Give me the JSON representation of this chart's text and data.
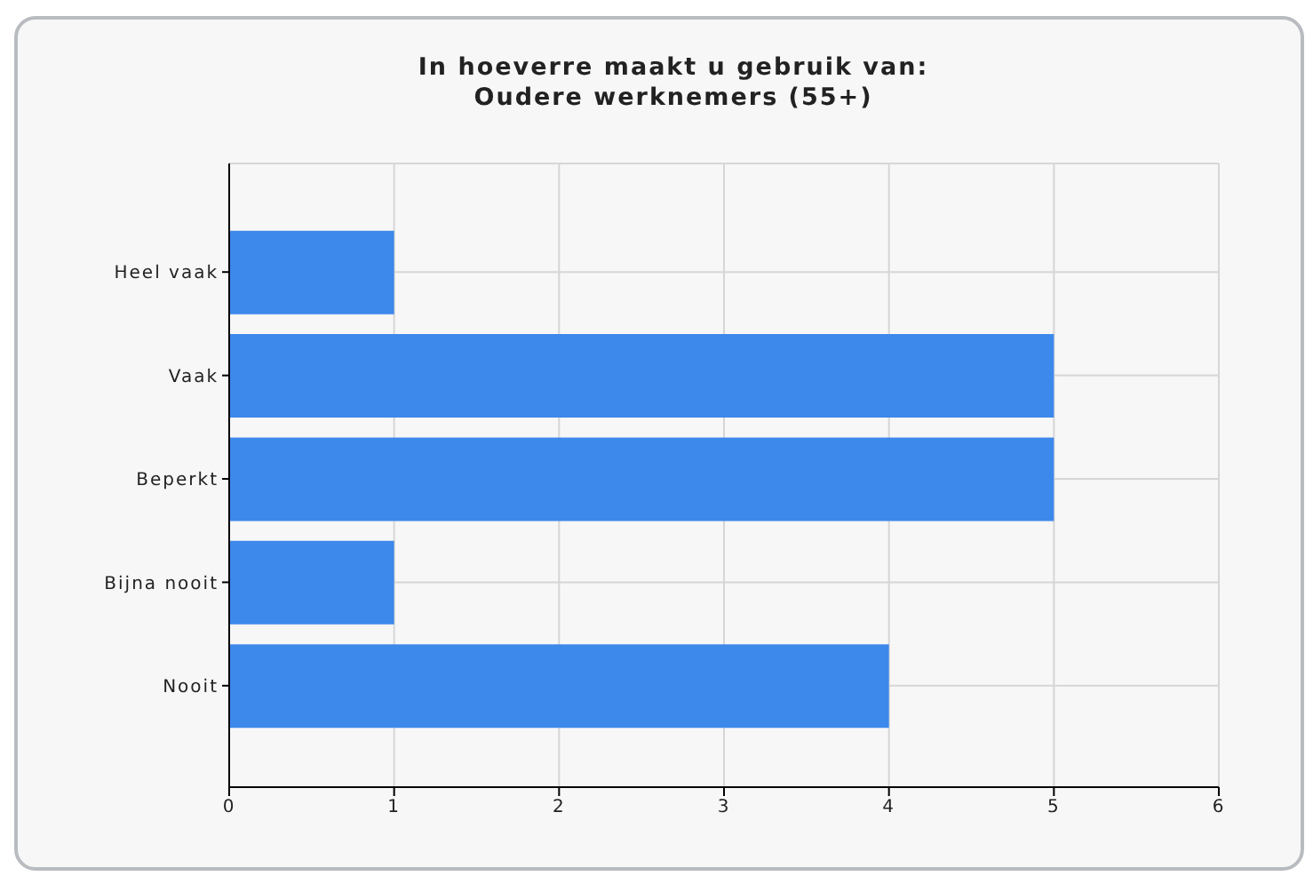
{
  "chart_data": {
    "type": "bar",
    "title": "In hoeverre maakt u gebruik van:\nOudere werknemers (55+)",
    "orientation": "horizontal",
    "categories": [
      "Heel vaak",
      "Vaak",
      "Beperkt",
      "Bijna nooit",
      "Nooit"
    ],
    "values": [
      1,
      5,
      5,
      1,
      4
    ],
    "color": "#3d88eb",
    "xlim": [
      0,
      6
    ],
    "xticks": [
      0,
      1,
      2,
      3,
      4,
      5,
      6
    ],
    "grid": true
  }
}
